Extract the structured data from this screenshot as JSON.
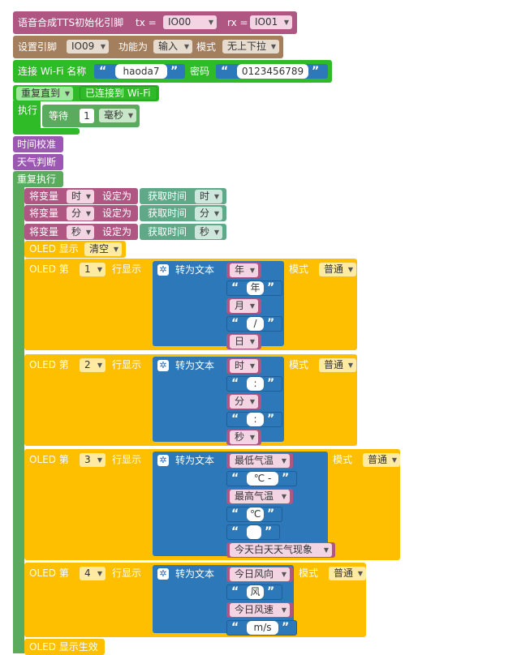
{
  "blocks": {
    "tts_init": {
      "label": "语音合成TTS初始化引脚",
      "tx_label": "tx =",
      "tx_value": "IO00",
      "rx_label": "rx =",
      "rx_value": "IO01"
    },
    "set_pin": {
      "label": "设置引脚",
      "pin": "IO09",
      "func_label": "功能为",
      "func": "输入",
      "mode_label": "模式",
      "mode": "无上下拉"
    },
    "wifi": {
      "label": "连接 Wi-Fi 名称",
      "ssid": "haoda7",
      "pwd_label": "密码",
      "password": "0123456789"
    },
    "repeat_until": {
      "label": "重复直到",
      "cond": "已连接到 Wi-Fi",
      "exec_label": "执行"
    },
    "wait": {
      "label": "等待",
      "value": "1",
      "unit": "毫秒"
    },
    "time_sync": "时间校准",
    "weather": "天气判断",
    "forever": "重复执行",
    "assign": [
      {
        "label": "将变量",
        "var": "时",
        "set": "设定为",
        "get": "获取时间",
        "unit": "时"
      },
      {
        "label": "将变量",
        "var": "分",
        "set": "设定为",
        "get": "获取时间",
        "unit": "分"
      },
      {
        "label": "将变量",
        "var": "秒",
        "set": "设定为",
        "get": "获取时间",
        "unit": "秒"
      }
    ],
    "oled_clear": {
      "label": "OLED 显示",
      "value": "清空"
    },
    "oled_common": {
      "prefix": "OLED 第",
      "show": "行显示",
      "to_text": "转为文本",
      "mode_label": "模式",
      "mode": "普通"
    },
    "rows": [
      {
        "line": "1",
        "items": [
          {
            "kind": "var",
            "text": "年"
          },
          {
            "kind": "str",
            "text": "年"
          },
          {
            "kind": "var",
            "text": "月"
          },
          {
            "kind": "str",
            "text": "/"
          },
          {
            "kind": "var",
            "text": "日"
          }
        ]
      },
      {
        "line": "2",
        "items": [
          {
            "kind": "var",
            "text": "时"
          },
          {
            "kind": "str",
            "text": ":"
          },
          {
            "kind": "var",
            "text": "分"
          },
          {
            "kind": "str",
            "text": ":"
          },
          {
            "kind": "var",
            "text": "秒"
          }
        ]
      },
      {
        "line": "3",
        "items": [
          {
            "kind": "var",
            "text": "最低气温"
          },
          {
            "kind": "str",
            "text": "℃ -"
          },
          {
            "kind": "var",
            "text": "最高气温"
          },
          {
            "kind": "str",
            "text": "℃"
          },
          {
            "kind": "str",
            "text": ""
          },
          {
            "kind": "var",
            "text": "今天白天天气现象"
          }
        ]
      },
      {
        "line": "4",
        "items": [
          {
            "kind": "var",
            "text": "今日风向"
          },
          {
            "kind": "str",
            "text": "风"
          },
          {
            "kind": "var",
            "text": "今日风速"
          },
          {
            "kind": "str",
            "text": "m/s"
          }
        ]
      }
    ],
    "oled_apply": "OLED 显示生效"
  },
  "colors": {
    "tts": "#b05683",
    "pin": "#a37f5e",
    "wifi": "#2fba27",
    "green": "#5bab5f",
    "purple": "#9a58b0",
    "teal": "#5fa989",
    "oled": "#fdbf00",
    "text": "#2d78b9",
    "var": "#b05683"
  }
}
